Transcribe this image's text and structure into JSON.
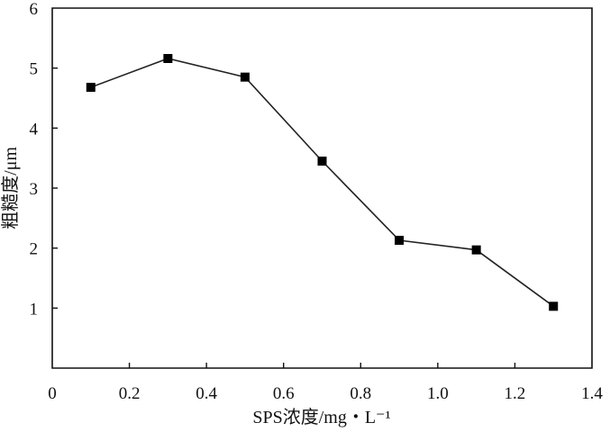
{
  "chart_data": {
    "type": "line",
    "title": "",
    "xlabel": "SPS浓度/mg・L⁻¹",
    "ylabel": "粗糙度/μm",
    "xlim": [
      0,
      1.4
    ],
    "ylim": [
      0,
      6
    ],
    "xticks": [
      0,
      0.2,
      0.4,
      0.6,
      0.8,
      1.0,
      1.2,
      1.4
    ],
    "xtick_labels": [
      "0",
      "0.2",
      "0.4",
      "0.6",
      "0.8",
      "1.0",
      "1.2",
      "1.4"
    ],
    "yticks": [
      1,
      2,
      3,
      4,
      5,
      6
    ],
    "ytick_labels": [
      "1",
      "2",
      "3",
      "4",
      "5",
      "6"
    ],
    "grid": false,
    "marker": "square",
    "colors": {
      "line": "#222222",
      "marker": "#000000",
      "axis": "#111111"
    },
    "series": [
      {
        "x": [
          0.1,
          0.3,
          0.5,
          0.7,
          0.9,
          1.1,
          1.3
        ],
        "y": [
          4.68,
          5.16,
          4.85,
          3.45,
          2.13,
          1.97,
          1.03
        ]
      }
    ]
  }
}
